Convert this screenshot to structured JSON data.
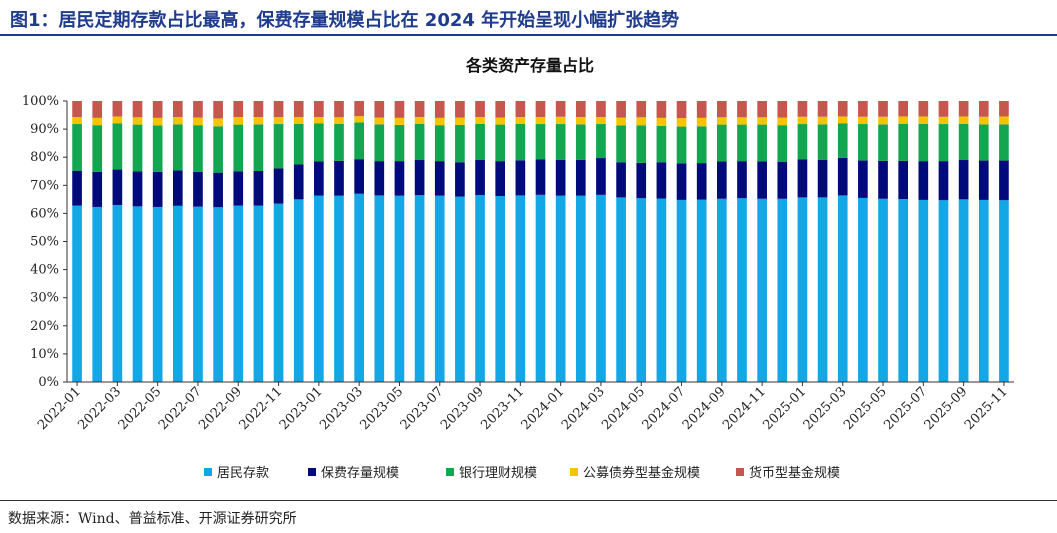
{
  "figure_title": "图1：居民定期存款占比最高，保费存量规模占比在 2024 年开始呈现小幅扩张趋势",
  "source": "数据来源：Wind、普益标准、开源证券研究所",
  "chart_data": {
    "type": "bar",
    "stacked": true,
    "title": "各类资产存量占比",
    "xlabel": "",
    "ylabel": "",
    "ylim": [
      0,
      100
    ],
    "yticks": [
      "0%",
      "10%",
      "20%",
      "30%",
      "40%",
      "50%",
      "60%",
      "70%",
      "80%",
      "90%",
      "100%"
    ],
    "grid": false,
    "legend_position": "bottom",
    "categories": [
      "2022-01",
      "2022-02",
      "2022-03",
      "2022-04",
      "2022-05",
      "2022-06",
      "2022-07",
      "2022-08",
      "2022-09",
      "2022-10",
      "2022-11",
      "2022-12",
      "2023-01",
      "2023-02",
      "2023-03",
      "2023-04",
      "2023-05",
      "2023-06",
      "2023-07",
      "2023-08",
      "2023-09",
      "2023-10",
      "2023-11",
      "2023-12",
      "2024-01",
      "2024-02",
      "2024-03",
      "2024-04",
      "2024-05",
      "2024-06",
      "2024-07",
      "2024-08",
      "2024-09",
      "2024-10",
      "2024-11",
      "2024-12",
      "2025-01",
      "2025-02",
      "2025-03",
      "2025-04",
      "2025-05",
      "2025-06",
      "2025-07",
      "2025-08",
      "2025-09",
      "2025-10",
      "2025-11"
    ],
    "xtick_labels": [
      "2022-01",
      "2022-03",
      "2022-05",
      "2022-07",
      "2022-09",
      "2022-11",
      "2023-01",
      "2023-03",
      "2023-05",
      "2023-07",
      "2023-09",
      "2023-11",
      "2024-01",
      "2024-03",
      "2024-05",
      "2024-07",
      "2024-09",
      "2024-11",
      "2025-01",
      "2025-03",
      "2025-05",
      "2025-07",
      "2025-09",
      "2025-11"
    ],
    "series": [
      {
        "name": "居民存款",
        "color": "#13a7e6",
        "values": [
          62.8,
          62.3,
          63.0,
          62.5,
          62.3,
          62.7,
          62.4,
          62.2,
          62.8,
          62.8,
          63.5,
          65.0,
          66.3,
          66.3,
          67.0,
          66.4,
          66.3,
          66.5,
          66.3,
          66.0,
          66.5,
          66.2,
          66.4,
          66.6,
          66.3,
          66.3,
          66.6,
          65.7,
          65.4,
          65.3,
          64.8,
          64.9,
          65.2,
          65.4,
          65.2,
          65.2,
          65.7,
          65.7,
          66.4,
          65.5,
          65.2,
          65.1,
          64.8,
          64.7,
          65.0,
          64.8,
          64.7
        ]
      },
      {
        "name": "保费存量规模",
        "color": "#000a7a",
        "values": [
          12.4,
          12.5,
          12.6,
          12.4,
          12.5,
          12.6,
          12.4,
          12.3,
          12.2,
          12.3,
          12.5,
          12.4,
          12.2,
          12.4,
          12.3,
          12.2,
          12.3,
          12.5,
          12.3,
          12.2,
          12.5,
          12.4,
          12.5,
          12.6,
          12.8,
          12.8,
          13.1,
          12.5,
          12.6,
          12.9,
          13.0,
          13.0,
          13.3,
          13.2,
          13.3,
          13.2,
          13.5,
          13.4,
          13.4,
          13.3,
          13.5,
          13.6,
          13.8,
          13.9,
          14.0,
          14.0,
          14.1
        ]
      },
      {
        "name": "银行理财规模",
        "color": "#13a650",
        "values": [
          16.6,
          16.6,
          16.4,
          16.7,
          16.5,
          16.4,
          16.6,
          16.5,
          16.6,
          16.6,
          15.8,
          14.5,
          13.5,
          13.2,
          13.1,
          13.1,
          12.9,
          12.9,
          12.8,
          13.3,
          12.9,
          13.0,
          13.0,
          12.6,
          12.7,
          12.6,
          12.1,
          13.1,
          13.3,
          12.9,
          13.1,
          13.1,
          13.1,
          13.0,
          13.1,
          13.0,
          12.6,
          12.6,
          12.2,
          13.0,
          13.0,
          13.2,
          13.3,
          13.2,
          12.9,
          12.9,
          12.9
        ]
      },
      {
        "name": "公募债券型基金规模",
        "color": "#f5c400",
        "values": [
          2.5,
          2.6,
          2.5,
          2.6,
          2.7,
          2.6,
          2.7,
          2.8,
          2.7,
          2.6,
          2.5,
          2.4,
          2.3,
          2.3,
          2.2,
          2.4,
          2.5,
          2.4,
          2.6,
          2.6,
          2.4,
          2.5,
          2.4,
          2.5,
          2.6,
          2.6,
          2.5,
          2.8,
          2.9,
          2.9,
          3.0,
          3.0,
          2.6,
          2.6,
          2.6,
          2.7,
          2.6,
          2.7,
          2.5,
          2.6,
          2.7,
          2.6,
          2.6,
          2.6,
          2.6,
          2.7,
          2.8
        ]
      },
      {
        "name": "货币型基金规模",
        "color": "#c6574f",
        "values": [
          5.7,
          6.0,
          5.5,
          5.8,
          6.0,
          5.7,
          5.9,
          6.2,
          5.7,
          5.7,
          5.7,
          5.7,
          5.7,
          5.8,
          5.4,
          5.9,
          6.0,
          5.7,
          6.0,
          5.9,
          5.7,
          5.9,
          5.7,
          5.7,
          5.6,
          5.7,
          5.7,
          5.9,
          5.8,
          6.0,
          6.1,
          6.0,
          5.8,
          5.8,
          5.8,
          5.9,
          5.6,
          5.6,
          5.5,
          5.6,
          5.6,
          5.5,
          5.5,
          5.6,
          5.5,
          5.6,
          5.5
        ]
      }
    ]
  }
}
